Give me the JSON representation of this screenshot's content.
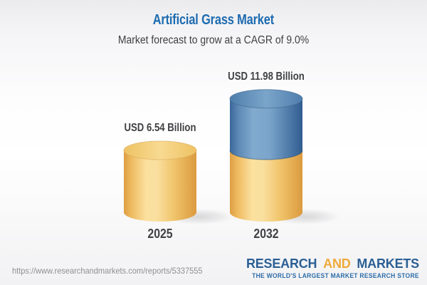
{
  "header": {
    "title": "Artificial Grass Market",
    "subtitle": "Market forecast to grow at a CAGR of 9.0%",
    "title_color": "#1d6bb0",
    "subtitle_color": "#3e3f41"
  },
  "chart_data": {
    "type": "bar",
    "style": "3d-stacked-cylinders",
    "title": "Artificial Grass Market",
    "subtitle": "Market forecast to grow at a CAGR of 9.0%",
    "unit": "USD Billion",
    "cagr": "9.0%",
    "categories": [
      "2025",
      "2032"
    ],
    "values": [
      6.54,
      11.98
    ],
    "legend": "none",
    "axes": "none",
    "bars": [
      {
        "category": "2025",
        "total": 6.54,
        "value_label": "USD 6.54 Billion",
        "segments": [
          {
            "value": 6.54,
            "color": "yellow"
          }
        ]
      },
      {
        "category": "2032",
        "total": 11.98,
        "value_label": "USD 11.98 Billion",
        "segments": [
          {
            "value": 6.54,
            "color": "yellow"
          },
          {
            "value": 5.44,
            "color": "blue"
          }
        ]
      }
    ],
    "colors": {
      "yellow": "#f3c767",
      "blue": "#5d89b4",
      "label_text": "#404144"
    }
  },
  "footer": {
    "url": "https://www.researchandmarkets.com/reports/5337555",
    "logo": {
      "word1": "RESEARCH",
      "word2": "AND",
      "word3": "MARKETS",
      "tagline": "THE WORLD'S LARGEST MARKET RESEARCH STORE",
      "blue": "#2b5f94",
      "gold": "#efaa3a",
      "tagline_color": "#2e6da8"
    }
  }
}
